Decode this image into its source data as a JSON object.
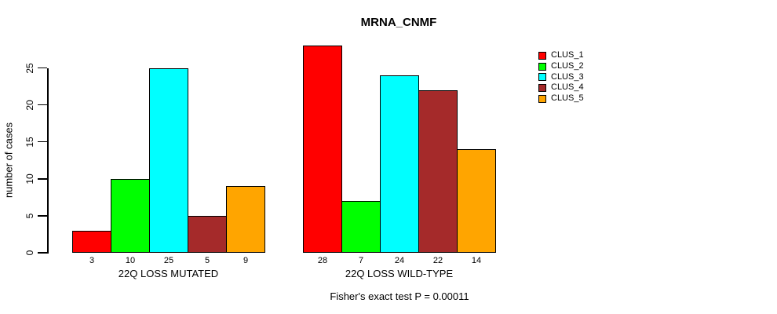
{
  "chart_data": {
    "type": "bar",
    "title": "MRNA_CNMF",
    "ylabel": "number of cases",
    "xlabel": "",
    "yticks": [
      0,
      5,
      10,
      15,
      20,
      25
    ],
    "ylim": [
      0,
      28
    ],
    "grid": false,
    "legend_position": "right",
    "annotation": "Fisher's exact test P = 0.00011",
    "categories": [
      "22Q LOSS MUTATED",
      "22Q LOSS WILD-TYPE"
    ],
    "series": [
      {
        "name": "CLUS_1",
        "color": "#FF0000",
        "values": [
          3,
          28
        ]
      },
      {
        "name": "CLUS_2",
        "color": "#00FF00",
        "values": [
          10,
          7
        ]
      },
      {
        "name": "CLUS_3",
        "color": "#00FFFF",
        "values": [
          25,
          24
        ]
      },
      {
        "name": "CLUS_4",
        "color": "#A52A2A",
        "values": [
          5,
          22
        ]
      },
      {
        "name": "CLUS_5",
        "color": "#FFA500",
        "values": [
          9,
          14
        ]
      }
    ],
    "colors": {
      "background": "#FFFFFF",
      "axis": "#000000",
      "text": "#000000"
    }
  }
}
